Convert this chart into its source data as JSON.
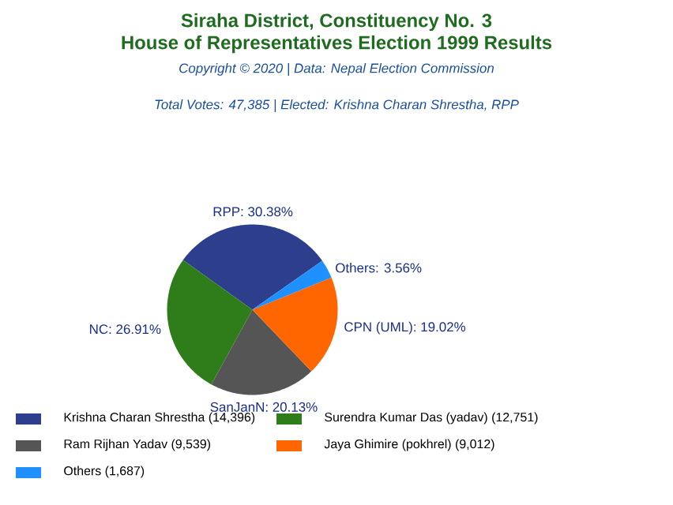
{
  "chart_data": {
    "type": "pie",
    "title": "Siraha District, Constituency No. 3",
    "subtitle": "House of Representatives Election 1999 Results",
    "annotations": [
      "Copyright © 2020 | Data: Nepal Election Commission",
      "Total Votes: 47,385 | Elected: Krishna Charan Shrestha, RPP"
    ],
    "categories": [
      "Krishna Charan Shrestha (14,396)",
      "Surendra Kumar Das (yadav) (12,751)",
      "Ram Rijhan Yadav (9,539)",
      "Jaya Ghimire (pokhrel) (9,012)",
      "Others (1,687)"
    ],
    "values": [
      30.38,
      26.91,
      20.13,
      19.02,
      3.56
    ],
    "value_labels": [
      "RPP: 30.38%",
      "NC: 26.91%",
      "SanJanN: 20.13%",
      "CPN (UML): 19.02%",
      "Others: 3.56%"
    ],
    "colors": [
      "#2c3e8c",
      "#2e7d1a",
      "#555555",
      "#ff6600",
      "#1e90ff"
    ],
    "legend": "bottom"
  }
}
